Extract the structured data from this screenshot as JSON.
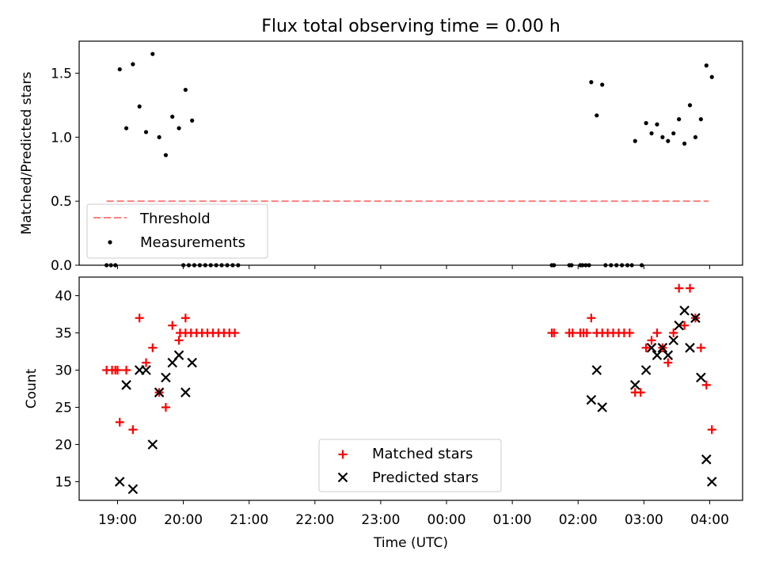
{
  "figure": {
    "title": "Flux total observing time = 0.00 h"
  },
  "chart_data": [
    {
      "type": "scatter",
      "ylabel": "Matched/Predicted stars",
      "ylim": [
        0,
        1.75
      ],
      "xlim": [
        "18:25",
        "04:30"
      ],
      "grid": false,
      "legend_position": "lower-left",
      "y_ticks": [
        0.0,
        0.5,
        1.0,
        1.5
      ],
      "y_tick_labels": [
        "0.0",
        "0.5",
        "1.0",
        "1.5"
      ],
      "threshold": {
        "name": "Threshold",
        "value": 0.5,
        "x_start": "18:50",
        "x_end": "03:59",
        "color": "#ff7f7f"
      },
      "series": [
        {
          "name": "Measurements",
          "color": "#000000",
          "points": [
            {
              "x": "18:50",
              "y": 0
            },
            {
              "x": "18:54",
              "y": 0
            },
            {
              "x": "18:58",
              "y": 0
            },
            {
              "x": "19:02",
              "y": 1.53
            },
            {
              "x": "19:08",
              "y": 1.07
            },
            {
              "x": "19:14",
              "y": 1.57
            },
            {
              "x": "19:20",
              "y": 1.24
            },
            {
              "x": "19:26",
              "y": 1.04
            },
            {
              "x": "19:32",
              "y": 1.65
            },
            {
              "x": "19:38",
              "y": 1.0
            },
            {
              "x": "19:44",
              "y": 0.86
            },
            {
              "x": "19:50",
              "y": 1.16
            },
            {
              "x": "19:56",
              "y": 1.07
            },
            {
              "x": "20:02",
              "y": 1.37
            },
            {
              "x": "20:08",
              "y": 1.13
            },
            {
              "x": "20:00",
              "y": 0
            },
            {
              "x": "20:05",
              "y": 0
            },
            {
              "x": "20:10",
              "y": 0
            },
            {
              "x": "20:15",
              "y": 0
            },
            {
              "x": "20:20",
              "y": 0
            },
            {
              "x": "20:25",
              "y": 0
            },
            {
              "x": "20:30",
              "y": 0
            },
            {
              "x": "20:35",
              "y": 0
            },
            {
              "x": "20:40",
              "y": 0
            },
            {
              "x": "20:45",
              "y": 0
            },
            {
              "x": "20:50",
              "y": 0
            },
            {
              "x": "01:36",
              "y": 0
            },
            {
              "x": "01:38",
              "y": 0
            },
            {
              "x": "01:52",
              "y": 0
            },
            {
              "x": "01:54",
              "y": 0
            },
            {
              "x": "02:02",
              "y": 0
            },
            {
              "x": "02:04",
              "y": 0
            },
            {
              "x": "02:07",
              "y": 0
            },
            {
              "x": "02:10",
              "y": 0
            },
            {
              "x": "02:12",
              "y": 1.43
            },
            {
              "x": "02:17",
              "y": 1.17
            },
            {
              "x": "02:22",
              "y": 1.41
            },
            {
              "x": "02:25",
              "y": 0
            },
            {
              "x": "02:30",
              "y": 0
            },
            {
              "x": "02:35",
              "y": 0
            },
            {
              "x": "02:40",
              "y": 0
            },
            {
              "x": "02:45",
              "y": 0
            },
            {
              "x": "02:49",
              "y": 0
            },
            {
              "x": "02:58",
              "y": 0
            },
            {
              "x": "02:52",
              "y": 0.97
            },
            {
              "x": "03:02",
              "y": 1.11
            },
            {
              "x": "03:07",
              "y": 1.03
            },
            {
              "x": "03:12",
              "y": 1.1
            },
            {
              "x": "03:17",
              "y": 1.0
            },
            {
              "x": "03:22",
              "y": 0.97
            },
            {
              "x": "03:27",
              "y": 1.03
            },
            {
              "x": "03:32",
              "y": 1.14
            },
            {
              "x": "03:37",
              "y": 0.95
            },
            {
              "x": "03:42",
              "y": 1.25
            },
            {
              "x": "03:47",
              "y": 1.0
            },
            {
              "x": "03:52",
              "y": 1.14
            },
            {
              "x": "03:57",
              "y": 1.56
            },
            {
              "x": "04:02",
              "y": 1.47
            }
          ]
        }
      ],
      "legend": [
        {
          "label": "Threshold",
          "marker": "dashed-line"
        },
        {
          "label": "Measurements",
          "marker": "dot"
        }
      ]
    },
    {
      "type": "scatter",
      "xlabel": "Time (UTC)",
      "ylabel": "Count",
      "ylim": [
        12.5,
        42.5
      ],
      "xlim": [
        "18:25",
        "04:30"
      ],
      "grid": false,
      "legend_position": "bottom-center",
      "x_ticks": [
        "19:00",
        "20:00",
        "21:00",
        "22:00",
        "23:00",
        "00:00",
        "01:00",
        "02:00",
        "03:00",
        "04:00"
      ],
      "y_ticks": [
        15,
        20,
        25,
        30,
        35,
        40
      ],
      "y_tick_labels": [
        "15",
        "20",
        "25",
        "30",
        "35",
        "40"
      ],
      "series": [
        {
          "name": "Matched stars",
          "color": "#ff0000",
          "marker": "plus",
          "points": [
            {
              "x": "18:50",
              "y": 30
            },
            {
              "x": "18:55",
              "y": 30
            },
            {
              "x": "19:00",
              "y": 30
            },
            {
              "x": "18:58",
              "y": 30
            },
            {
              "x": "19:02",
              "y": 23
            },
            {
              "x": "19:08",
              "y": 30
            },
            {
              "x": "19:14",
              "y": 22
            },
            {
              "x": "19:20",
              "y": 37
            },
            {
              "x": "19:26",
              "y": 31
            },
            {
              "x": "19:32",
              "y": 33
            },
            {
              "x": "19:38",
              "y": 27
            },
            {
              "x": "19:44",
              "y": 25
            },
            {
              "x": "19:50",
              "y": 36
            },
            {
              "x": "19:56",
              "y": 34
            },
            {
              "x": "20:02",
              "y": 37
            },
            {
              "x": "19:57",
              "y": 35
            },
            {
              "x": "20:02",
              "y": 35
            },
            {
              "x": "20:07",
              "y": 35
            },
            {
              "x": "20:12",
              "y": 35
            },
            {
              "x": "20:17",
              "y": 35
            },
            {
              "x": "20:22",
              "y": 35
            },
            {
              "x": "20:27",
              "y": 35
            },
            {
              "x": "20:32",
              "y": 35
            },
            {
              "x": "20:37",
              "y": 35
            },
            {
              "x": "20:42",
              "y": 35
            },
            {
              "x": "20:47",
              "y": 35
            },
            {
              "x": "01:36",
              "y": 35
            },
            {
              "x": "01:38",
              "y": 35
            },
            {
              "x": "01:52",
              "y": 35
            },
            {
              "x": "01:55",
              "y": 35
            },
            {
              "x": "02:02",
              "y": 35
            },
            {
              "x": "02:05",
              "y": 35
            },
            {
              "x": "02:08",
              "y": 35
            },
            {
              "x": "02:12",
              "y": 37
            },
            {
              "x": "02:17",
              "y": 35
            },
            {
              "x": "02:22",
              "y": 35
            },
            {
              "x": "02:27",
              "y": 35
            },
            {
              "x": "02:32",
              "y": 35
            },
            {
              "x": "02:37",
              "y": 35
            },
            {
              "x": "02:42",
              "y": 35
            },
            {
              "x": "02:47",
              "y": 35
            },
            {
              "x": "02:52",
              "y": 27
            },
            {
              "x": "02:57",
              "y": 27
            },
            {
              "x": "03:02",
              "y": 33
            },
            {
              "x": "03:07",
              "y": 34
            },
            {
              "x": "03:12",
              "y": 35
            },
            {
              "x": "03:17",
              "y": 33
            },
            {
              "x": "03:22",
              "y": 31
            },
            {
              "x": "03:27",
              "y": 35
            },
            {
              "x": "03:32",
              "y": 41
            },
            {
              "x": "03:37",
              "y": 36
            },
            {
              "x": "03:42",
              "y": 41
            },
            {
              "x": "03:47",
              "y": 37
            },
            {
              "x": "03:52",
              "y": 33
            },
            {
              "x": "03:57",
              "y": 28
            },
            {
              "x": "04:02",
              "y": 22
            }
          ]
        },
        {
          "name": "Predicted stars",
          "color": "#000000",
          "marker": "x",
          "points": [
            {
              "x": "19:02",
              "y": 15
            },
            {
              "x": "19:08",
              "y": 28
            },
            {
              "x": "19:14",
              "y": 14
            },
            {
              "x": "19:20",
              "y": 30
            },
            {
              "x": "19:26",
              "y": 30
            },
            {
              "x": "19:32",
              "y": 20
            },
            {
              "x": "19:38",
              "y": 27
            },
            {
              "x": "19:44",
              "y": 29
            },
            {
              "x": "19:50",
              "y": 31
            },
            {
              "x": "19:56",
              "y": 32
            },
            {
              "x": "20:02",
              "y": 27
            },
            {
              "x": "20:08",
              "y": 31
            },
            {
              "x": "02:12",
              "y": 26
            },
            {
              "x": "02:17",
              "y": 30
            },
            {
              "x": "02:22",
              "y": 25
            },
            {
              "x": "02:52",
              "y": 28
            },
            {
              "x": "03:02",
              "y": 30
            },
            {
              "x": "03:07",
              "y": 33
            },
            {
              "x": "03:12",
              "y": 32
            },
            {
              "x": "03:17",
              "y": 33
            },
            {
              "x": "03:22",
              "y": 32
            },
            {
              "x": "03:27",
              "y": 34
            },
            {
              "x": "03:32",
              "y": 36
            },
            {
              "x": "03:37",
              "y": 38
            },
            {
              "x": "03:42",
              "y": 33
            },
            {
              "x": "03:47",
              "y": 37
            },
            {
              "x": "03:52",
              "y": 29
            },
            {
              "x": "03:57",
              "y": 18
            },
            {
              "x": "04:02",
              "y": 15
            }
          ]
        }
      ],
      "legend": [
        {
          "label": "Matched stars",
          "marker": "plus"
        },
        {
          "label": "Predicted stars",
          "marker": "x"
        }
      ]
    }
  ]
}
